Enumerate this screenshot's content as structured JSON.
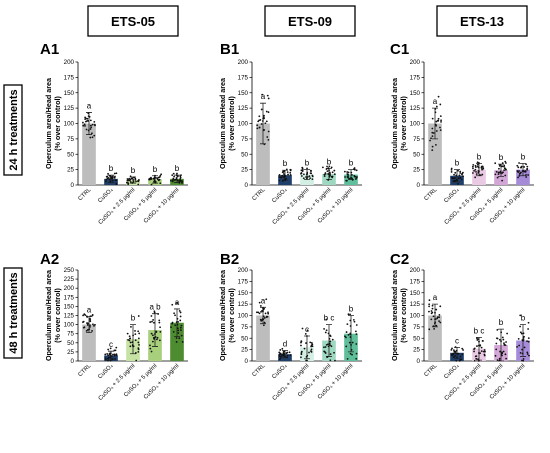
{
  "headers": {
    "col1": "ETS-05",
    "col2": "ETS-09",
    "col3": "ETS-13"
  },
  "row_labels": {
    "row1": "24 h treatments",
    "row2": "48 h treatments"
  },
  "colors": {
    "ctrl": "#bdbdbd",
    "cuso4": "#1f3f6b",
    "ets05_green": [
      "#c6e3a4",
      "#a7cf7c",
      "#4e8c31"
    ],
    "ets09_green": [
      "#d3eee2",
      "#9fd8c0",
      "#5fbf9a"
    ],
    "ets13_purple": [
      "#e9c9e4",
      "#d2a6d6",
      "#a68cd8"
    ]
  },
  "chart_data": [
    {
      "panel": "A1",
      "type": "bar",
      "ylabel": "Operculum area/Head area\n(% over control)",
      "ylim": [
        0,
        200
      ],
      "yticks": [
        0,
        25,
        50,
        75,
        100,
        125,
        150,
        175,
        200
      ],
      "categories": [
        "CTRL",
        "CuSO₄",
        "CuSO₄ + 2.5 μg/ml",
        "CuSO₄ + 5 μg/ml",
        "CuSO₄ + 10 μg/ml"
      ],
      "values": [
        100,
        10,
        8,
        9,
        10
      ],
      "sd": [
        18,
        6,
        5,
        6,
        6
      ],
      "letters": [
        "a",
        "b",
        "b",
        "b",
        "b"
      ]
    },
    {
      "panel": "B1",
      "type": "bar",
      "ylabel": "Operculum area/Head area\n(% over control)",
      "ylim": [
        0,
        200
      ],
      "yticks": [
        0,
        25,
        50,
        75,
        100,
        125,
        150,
        175,
        200
      ],
      "categories": [
        "CTRL",
        "CuSO₄",
        "CuSO₄ + 2.5 μg/ml",
        "CuSO₄ + 5 μg/ml",
        "CuSO₄ + 10 μg/ml"
      ],
      "values": [
        100,
        16,
        17,
        18,
        17
      ],
      "sd": [
        33,
        8,
        8,
        9,
        8
      ],
      "letters": [
        "a",
        "b",
        "b",
        "b",
        "b"
      ]
    },
    {
      "panel": "C1",
      "type": "bar",
      "ylabel": "Operculum area/Head area\n(% over control)",
      "ylim": [
        0,
        200
      ],
      "yticks": [
        0,
        25,
        50,
        75,
        100,
        125,
        150,
        175,
        200
      ],
      "categories": [
        "CTRL",
        "CuSO₄",
        "CuSO₄ + 2.5 μg/ml",
        "CuSO₄ + 5 μg/ml",
        "CuSO₄ + 10 μg/ml"
      ],
      "values": [
        100,
        15,
        25,
        24,
        25
      ],
      "sd": [
        25,
        10,
        10,
        10,
        10
      ],
      "letters": [
        "a",
        "b",
        "b",
        "b",
        "b"
      ]
    },
    {
      "panel": "A2",
      "type": "bar",
      "ylabel": "Operculum area/Head area\n(% over control)",
      "ylim": [
        0,
        250
      ],
      "yticks": [
        0,
        25,
        50,
        75,
        100,
        125,
        150,
        175,
        200,
        225,
        250
      ],
      "categories": [
        "CTRL",
        "CuSO₄",
        "CuSO₄ + 2.5 μg/ml",
        "CuSO₄ + 5 μg/ml",
        "CuSO₄ + 10 μg/ml"
      ],
      "values": [
        100,
        15,
        60,
        85,
        105
      ],
      "sd": [
        22,
        12,
        40,
        45,
        38
      ],
      "letters": [
        "a",
        "c",
        "b",
        "a b",
        "a"
      ]
    },
    {
      "panel": "B2",
      "type": "bar",
      "ylabel": "Operculum area/Head area\n(% over control)",
      "ylim": [
        0,
        200
      ],
      "yticks": [
        0,
        25,
        50,
        75,
        100,
        125,
        150,
        175,
        200
      ],
      "categories": [
        "CTRL",
        "CuSO₄",
        "CuSO₄ + 2.5 μg/ml",
        "CuSO₄ + 5 μg/ml",
        "CuSO₄ + 10 μg/ml"
      ],
      "values": [
        100,
        15,
        30,
        45,
        60
      ],
      "sd": [
        18,
        8,
        25,
        35,
        40
      ],
      "letters": [
        "a",
        "d",
        "c",
        "b c",
        "b"
      ]
    },
    {
      "panel": "C2",
      "type": "bar",
      "ylabel": "Operculum area/Head area\n(% over control)",
      "ylim": [
        0,
        200
      ],
      "yticks": [
        0,
        25,
        50,
        75,
        100,
        125,
        150,
        175,
        200
      ],
      "categories": [
        "CTRL",
        "CuSO₄",
        "CuSO₄ + 2.5 μg/ml",
        "CuSO₄ + 5 μg/ml",
        "CuSO₄ + 10 μg/ml"
      ],
      "values": [
        100,
        18,
        27,
        35,
        45
      ],
      "sd": [
        25,
        12,
        25,
        35,
        35
      ],
      "letters": [
        "a",
        "c",
        "b c",
        "b",
        "b"
      ]
    }
  ]
}
